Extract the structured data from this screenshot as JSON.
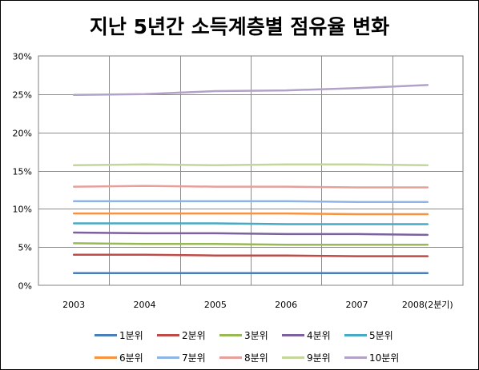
{
  "chart_data": {
    "type": "line",
    "title": "지난 5년간 소득계층별 점유율 변화",
    "categories": [
      "2003",
      "2004",
      "2005",
      "2006",
      "2007",
      "2008(2분기)"
    ],
    "ylim": [
      0,
      30
    ],
    "yticks": [
      "0%",
      "5%",
      "10%",
      "15%",
      "20%",
      "25%",
      "30%"
    ],
    "grid": true,
    "legend_position": "bottom",
    "series": [
      {
        "name": "1분위",
        "color": "#4a7ebb",
        "values": [
          1.6,
          1.6,
          1.6,
          1.6,
          1.6,
          1.6
        ]
      },
      {
        "name": "2분위",
        "color": "#be4b48",
        "values": [
          4.0,
          4.0,
          3.9,
          3.9,
          3.8,
          3.8
        ]
      },
      {
        "name": "3분위",
        "color": "#98b954",
        "values": [
          5.5,
          5.4,
          5.4,
          5.3,
          5.3,
          5.3
        ]
      },
      {
        "name": "4분위",
        "color": "#7d60a0",
        "values": [
          6.9,
          6.8,
          6.8,
          6.7,
          6.7,
          6.6
        ]
      },
      {
        "name": "5분위",
        "color": "#46aac5",
        "values": [
          8.1,
          8.1,
          8.1,
          8.0,
          8.0,
          8.0
        ]
      },
      {
        "name": "6분위",
        "color": "#f69240",
        "values": [
          9.4,
          9.4,
          9.4,
          9.4,
          9.3,
          9.3
        ]
      },
      {
        "name": "7분위",
        "color": "#8eb4e3",
        "values": [
          11.0,
          11.0,
          11.0,
          11.0,
          10.9,
          10.9
        ]
      },
      {
        "name": "8분위",
        "color": "#e6a09c",
        "values": [
          12.9,
          13.0,
          12.9,
          12.9,
          12.8,
          12.8
        ]
      },
      {
        "name": "9분위",
        "color": "#c3d69b",
        "values": [
          15.7,
          15.8,
          15.7,
          15.8,
          15.8,
          15.7
        ]
      },
      {
        "name": "10분위",
        "color": "#b3a2c7",
        "values": [
          24.9,
          25.0,
          25.4,
          25.5,
          25.8,
          26.2
        ]
      }
    ]
  }
}
